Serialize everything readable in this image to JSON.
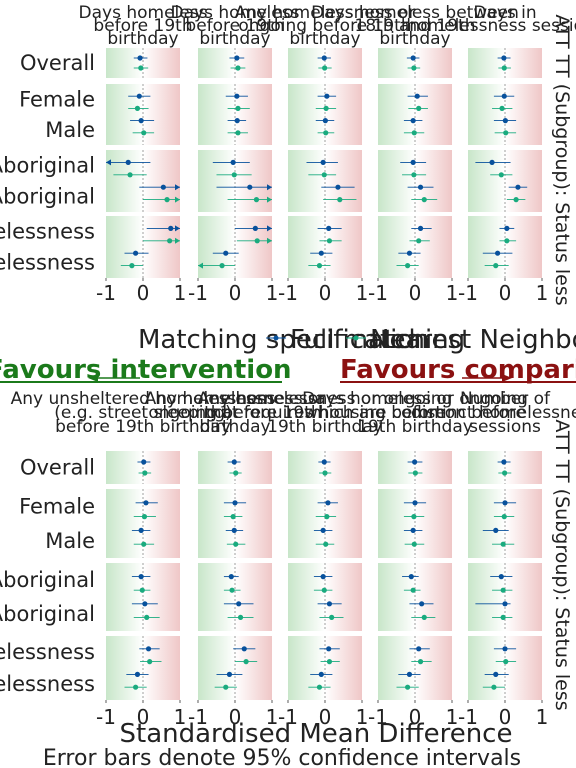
{
  "chart_data": {
    "type": "scatter",
    "xlim": [
      -1,
      1
    ],
    "xticks": [
      -1,
      0,
      1
    ],
    "xlabel": "Standardised Mean Difference",
    "caption": "Error bars denote 95% confidence intervals",
    "legend": {
      "title": "Matching specification",
      "items": [
        {
          "name": "Full matching",
          "color": "#08519c"
        },
        {
          "name": "Nearest Neighbour",
          "color": "#1aab7f"
        }
      ]
    },
    "favours": {
      "left": {
        "text": "Favours intervention",
        "color": "#1b7a1b"
      },
      "right": {
        "text": "Favours comparison",
        "color": "#8b1111"
      }
    },
    "row_labels": {
      "overall": "Overall",
      "female": "Female",
      "male": "Male",
      "aboriginal": "Aboriginal",
      "non_aboriginal": "Non-Aboriginal",
      "no_prior": "No prior homelessness",
      "prior": "Prior homelessness"
    },
    "facet_label": "ATT TT (Subgroup): Status less",
    "panels": [
      {
        "columns": [
          "Days homeless before 19th birthday",
          "Days homeless before 19th birthday",
          "Any homelessness or ongoing before 19th birthday",
          "Days homeless between 18th and 19th birthday",
          "Days in homelessness sessions"
        ],
        "groups": [
          {
            "labels": [
              "Overall"
            ],
            "cells": [
              [
                [
                  -0.08,
                  -0.25,
                  0.12
                ],
                [
                  -0.06,
                  -0.25,
                  0.14
                ]
              ],
              [
                [
                  0.05,
                  -0.15,
                  0.25
                ],
                [
                  0.08,
                  -0.12,
                  0.28
                ]
              ],
              [
                [
                  -0.02,
                  -0.2,
                  0.16
                ],
                [
                  -0.01,
                  -0.18,
                  0.18
                ]
              ],
              [
                [
                  -0.05,
                  -0.22,
                  0.12
                ],
                [
                  -0.03,
                  -0.2,
                  0.14
                ]
              ],
              [
                [
                  -0.03,
                  -0.2,
                  0.15
                ],
                [
                  -0.02,
                  -0.18,
                  0.16
                ]
              ]
            ]
          },
          {
            "labels": [
              "Female",
              "Male"
            ],
            "cells": [
              [
                [
                  -0.1,
                  -0.4,
                  0.2
                ],
                [
                  -0.15,
                  -0.4,
                  0.15
                ],
                [
                  -0.05,
                  -0.35,
                  0.3
                ],
                [
                  0.02,
                  -0.28,
                  0.3
                ]
              ],
              [
                [
                  0.05,
                  -0.25,
                  0.35
                ],
                [
                  0.08,
                  -0.2,
                  0.4
                ],
                [
                  0.06,
                  -0.2,
                  0.3
                ],
                [
                  0.08,
                  -0.2,
                  0.35
                ]
              ],
              [
                [
                  0.05,
                  -0.2,
                  0.3
                ],
                [
                  0.03,
                  -0.25,
                  0.3
                ],
                [
                  0.01,
                  -0.25,
                  0.25
                ],
                [
                  0.02,
                  -0.2,
                  0.25
                ]
              ],
              [
                [
                  0.06,
                  -0.2,
                  0.35
                ],
                [
                  0.1,
                  -0.18,
                  0.35
                ],
                [
                  -0.05,
                  -0.3,
                  0.2
                ],
                [
                  -0.02,
                  -0.3,
                  0.25
                ]
              ],
              [
                [
                  -0.02,
                  -0.3,
                  0.25
                ],
                [
                  -0.08,
                  -0.35,
                  0.2
                ],
                [
                  0.01,
                  -0.3,
                  0.3
                ],
                [
                  0.02,
                  -0.28,
                  0.3
                ]
              ]
            ]
          },
          {
            "labels": [
              "Aboriginal",
              "Non-Aboriginal"
            ],
            "cells": [
              [
                [
                  -0.4,
                  -1.2,
                  0.2
                ],
                [
                  -0.35,
                  -0.8,
                  0.1
                ],
                [
                  0.55,
                  -0.1,
                  1.2
                ],
                [
                  0.65,
                  0.0,
                  1.4
                ]
              ],
              [
                [
                  -0.05,
                  -0.6,
                  0.4
                ],
                [
                  -0.02,
                  -0.5,
                  0.45
                ],
                [
                  0.4,
                  -0.5,
                  1.3
                ],
                [
                  0.58,
                  -0.2,
                  1.4
                ]
              ],
              [
                [
                  -0.05,
                  -0.5,
                  0.35
                ],
                [
                  -0.02,
                  -0.45,
                  0.3
                ],
                [
                  0.35,
                  -0.1,
                  0.8
                ],
                [
                  0.4,
                  -0.05,
                  0.85
                ]
              ],
              [
                [
                  -0.05,
                  -0.4,
                  0.3
                ],
                [
                  -0.03,
                  -0.35,
                  0.3
                ],
                [
                  0.15,
                  -0.2,
                  0.5
                ],
                [
                  0.25,
                  -0.1,
                  0.6
                ]
              ],
              [
                [
                  -0.35,
                  -0.8,
                  0.15
                ],
                [
                  -0.1,
                  -0.4,
                  0.2
                ],
                [
                  0.35,
                  0.1,
                  0.6
                ],
                [
                  0.3,
                  0.05,
                  0.55
                ]
              ]
            ]
          },
          {
            "labels": [
              "No prior homelessness",
              "Prior homelessness"
            ],
            "cells": [
              [
                [
                  0.75,
                  0.1,
                  1.2
                ],
                [
                  0.72,
                  0.0,
                  1.2
                ],
                [
                  -0.2,
                  -0.5,
                  0.15
                ],
                [
                  -0.3,
                  -0.6,
                  0.0
                ]
              ],
              [
                [
                  0.55,
                  0.0,
                  1.1
                ],
                [
                  0.6,
                  0.05,
                  1.15
                ],
                [
                  -0.25,
                  -0.6,
                  0.1
                ],
                [
                  -0.35,
                  -1.2,
                  0.0
                ]
              ],
              [
                [
                  0.1,
                  -0.2,
                  0.45
                ],
                [
                  0.12,
                  -0.15,
                  0.45
                ],
                [
                  -0.1,
                  -0.4,
                  0.2
                ],
                [
                  -0.15,
                  -0.45,
                  0.15
                ]
              ],
              [
                [
                  0.15,
                  -0.1,
                  0.45
                ],
                [
                  0.1,
                  -0.15,
                  0.4
                ],
                [
                  -0.15,
                  -0.45,
                  0.15
                ],
                [
                  -0.2,
                  -0.5,
                  0.1
                ]
              ],
              [
                [
                  0.05,
                  -0.15,
                  0.25
                ],
                [
                  0.05,
                  -0.15,
                  0.3
                ],
                [
                  -0.2,
                  -0.6,
                  0.2
                ],
                [
                  -0.25,
                  -0.55,
                  0.1
                ]
              ]
            ]
          }
        ]
      },
      {
        "columns": [
          "Any unsheltered homelessness (e.g. street sleeping) before 19th birthday",
          "Any homelessness or ongoing before 19th birthday",
          "Any homelessness or ongoing that requires housing before 19th birthday",
          "Days homeless or ongoing which are common before 19th birthday",
          "Number of distinct homelessness sessions"
        ],
        "groups": [
          {
            "labels": [
              "Overall"
            ],
            "cells": [
              [
                [
                  0.02,
                  -0.15,
                  0.2
                ],
                [
                  0.05,
                  -0.12,
                  0.22
                ]
              ],
              [
                [
                  -0.02,
                  -0.2,
                  0.15
                ],
                [
                  0.02,
                  -0.15,
                  0.18
                ]
              ],
              [
                [
                  -0.02,
                  -0.18,
                  0.15
                ],
                [
                  0.0,
                  -0.16,
                  0.17
                ]
              ],
              [
                [
                  -0.01,
                  -0.2,
                  0.2
                ],
                [
                  0.01,
                  -0.18,
                  0.2
                ]
              ],
              [
                [
                  -0.03,
                  -0.2,
                  0.15
                ],
                [
                  -0.01,
                  -0.18,
                  0.17
                ]
              ]
            ]
          },
          {
            "labels": [
              "Female",
              "Male"
            ],
            "cells": [
              [
                [
                  0.08,
                  -0.2,
                  0.4
                ],
                [
                  0.04,
                  -0.25,
                  0.35
                ],
                [
                  -0.05,
                  -0.3,
                  0.2
                ],
                [
                  0.02,
                  -0.25,
                  0.3
                ]
              ],
              [
                [
                  0.0,
                  -0.3,
                  0.3
                ],
                [
                  -0.05,
                  -0.3,
                  0.2
                ],
                [
                  -0.02,
                  -0.25,
                  0.22
                ],
                [
                  0.02,
                  -0.22,
                  0.28
                ]
              ],
              [
                [
                  0.08,
                  -0.2,
                  0.35
                ],
                [
                  0.05,
                  -0.25,
                  0.3
                ],
                [
                  -0.05,
                  -0.3,
                  0.2
                ],
                [
                  0.02,
                  -0.25,
                  0.25
                ]
              ],
              [
                [
                  0.0,
                  -0.3,
                  0.3
                ],
                [
                  -0.03,
                  -0.3,
                  0.25
                ],
                [
                  -0.05,
                  -0.3,
                  0.2
                ],
                [
                  -0.02,
                  -0.28,
                  0.25
                ]
              ],
              [
                [
                  0.0,
                  -0.3,
                  0.3
                ],
                [
                  -0.02,
                  -0.3,
                  0.25
                ],
                [
                  -0.25,
                  -0.6,
                  0.1
                ],
                [
                  -0.05,
                  -0.35,
                  0.25
                ]
              ]
            ]
          },
          {
            "labels": [
              "Aboriginal",
              "Non-Aboriginal"
            ],
            "cells": [
              [
                [
                  -0.05,
                  -0.3,
                  0.2
                ],
                [
                  -0.02,
                  -0.25,
                  0.2
                ],
                [
                  0.05,
                  -0.3,
                  0.4
                ],
                [
                  0.1,
                  -0.25,
                  0.45
                ]
              ],
              [
                [
                  -0.1,
                  -0.3,
                  0.1
                ],
                [
                  -0.08,
                  -0.3,
                  0.15
                ],
                [
                  0.1,
                  -0.3,
                  0.5
                ],
                [
                  0.15,
                  -0.2,
                  0.5
                ]
              ],
              [
                [
                  -0.05,
                  -0.3,
                  0.2
                ],
                [
                  -0.02,
                  -0.3,
                  0.2
                ],
                [
                  0.12,
                  -0.2,
                  0.45
                ],
                [
                  0.18,
                  -0.15,
                  0.5
                ]
              ],
              [
                [
                  -0.1,
                  -0.35,
                  0.1
                ],
                [
                  -0.05,
                  -0.3,
                  0.15
                ],
                [
                  0.18,
                  -0.15,
                  0.5
                ],
                [
                  0.25,
                  -0.1,
                  0.55
                ]
              ],
              [
                [
                  -0.1,
                  -0.4,
                  0.2
                ],
                [
                  -0.05,
                  -0.35,
                  0.2
                ],
                [
                  0.0,
                  -0.8,
                  0.15
                ],
                [
                  -0.05,
                  -0.35,
                  0.2
                ]
              ]
            ]
          },
          {
            "labels": [
              "No prior homelessness",
              "Prior homelessness"
            ],
            "cells": [
              [
                [
                  0.15,
                  -0.1,
                  0.45
                ],
                [
                  0.18,
                  -0.08,
                  0.5
                ],
                [
                  -0.15,
                  -0.45,
                  0.15
                ],
                [
                  -0.2,
                  -0.5,
                  0.1
                ]
              ],
              [
                [
                  0.25,
                  -0.05,
                  0.55
                ],
                [
                  0.3,
                  0.0,
                  0.6
                ],
                [
                  -0.15,
                  -0.5,
                  0.2
                ],
                [
                  -0.25,
                  -0.55,
                  0.05
                ]
              ],
              [
                [
                  0.1,
                  -0.15,
                  0.4
                ],
                [
                  0.12,
                  -0.12,
                  0.4
                ],
                [
                  -0.1,
                  -0.4,
                  0.2
                ],
                [
                  -0.15,
                  -0.45,
                  0.15
                ]
              ],
              [
                [
                  0.1,
                  -0.15,
                  0.4
                ],
                [
                  0.15,
                  -0.1,
                  0.45
                ],
                [
                  -0.15,
                  -0.45,
                  0.15
                ],
                [
                  -0.2,
                  -0.5,
                  0.1
                ]
              ],
              [
                [
                  0.0,
                  -0.3,
                  0.3
                ],
                [
                  0.02,
                  -0.25,
                  0.3
                ],
                [
                  -0.25,
                  -0.55,
                  0.1
                ],
                [
                  -0.3,
                  -0.6,
                  0.0
                ]
              ]
            ]
          }
        ]
      }
    ]
  }
}
